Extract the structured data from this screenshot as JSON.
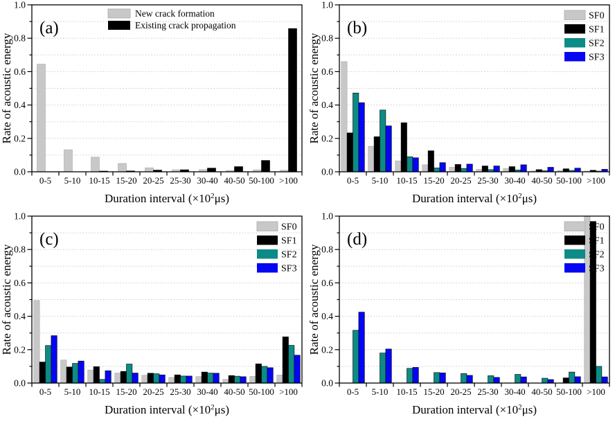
{
  "figure": {
    "description": "Four-panel grouped bar charts of acoustic energy rate versus AE event duration interval",
    "background": "#ffffff",
    "grid_color": "#c9c9c9",
    "axis_color": "#000000",
    "palette": {
      "gray": "#c8c8c8",
      "black": "#000000",
      "teal": "#0d8b86",
      "blue": "#0606f2"
    }
  },
  "chart_data": [
    {
      "type": "bar",
      "panel_label": "(a)",
      "xlabel": "Duration interval (×10²μs)",
      "ylabel": "Rate of acoustic energy",
      "ylim": [
        0,
        1.0
      ],
      "y_ticks": [
        "0.0",
        "0.2",
        "0.4",
        "0.6",
        "0.8",
        "1.0"
      ],
      "grid": "dotted horizontal every 0.1",
      "legend_position": "top-center",
      "categories": [
        "0-5",
        "5-10",
        "10-15",
        "15-20",
        "20-25",
        "25-30",
        "30-40",
        "40-50",
        "50-100",
        ">100"
      ],
      "series": [
        {
          "name": "New crack formation",
          "color": "#c8c8c8",
          "values": [
            0.645,
            0.132,
            0.088,
            0.05,
            0.024,
            0.012,
            0.013,
            0.008,
            0.012,
            0.009
          ]
        },
        {
          "name": "Existing crack propagation",
          "color": "#000000",
          "values": [
            0,
            0,
            0.003,
            0.005,
            0.01,
            0.012,
            0.022,
            0.031,
            0.068,
            0.858
          ]
        }
      ]
    },
    {
      "type": "bar",
      "panel_label": "(b)",
      "xlabel": "Duration interval (×10²μs)",
      "ylabel": "Rate of acoustic energy",
      "ylim": [
        0,
        1.0
      ],
      "y_ticks": [
        "0.0",
        "0.2",
        "0.4",
        "0.6",
        "0.8",
        "1.0"
      ],
      "grid": "dotted horizontal every 0.1",
      "legend_position": "top-right",
      "categories": [
        "0-5",
        "5-10",
        "10-15",
        "15-20",
        "20-25",
        "25-30",
        "30-40",
        "40-50",
        "50-100",
        ">100"
      ],
      "series": [
        {
          "name": "SF0",
          "color": "#c8c8c8",
          "values": [
            0.66,
            0.153,
            0.065,
            0.042,
            0.027,
            0.015,
            0.02,
            0.005,
            0.008,
            0.004
          ]
        },
        {
          "name": "SF1",
          "color": "#000000",
          "values": [
            0.233,
            0.21,
            0.294,
            0.126,
            0.044,
            0.035,
            0.031,
            0.013,
            0.018,
            0.009
          ]
        },
        {
          "name": "SF2",
          "color": "#0d8b86",
          "values": [
            0.472,
            0.37,
            0.09,
            0.023,
            0.02,
            0.013,
            0.011,
            0.006,
            0.008,
            0.004
          ]
        },
        {
          "name": "SF3",
          "color": "#0606f2",
          "values": [
            0.414,
            0.275,
            0.084,
            0.055,
            0.046,
            0.035,
            0.042,
            0.027,
            0.022,
            0.015
          ]
        }
      ]
    },
    {
      "type": "bar",
      "panel_label": "(c)",
      "xlabel": "Duration interval (×10²μs)",
      "ylabel": "Rate of acoustic energy",
      "ylim": [
        0,
        1.0
      ],
      "y_ticks": [
        "0.0",
        "0.2",
        "0.4",
        "0.6",
        "0.8",
        "1.0"
      ],
      "grid": "dotted horizontal every 0.1",
      "legend_position": "top-right",
      "categories": [
        "0-5",
        "5-10",
        "10-15",
        "15-20",
        "20-25",
        "25-30",
        "30-40",
        "40-50",
        "50-100",
        ">100"
      ],
      "series": [
        {
          "name": "SF0",
          "color": "#c8c8c8",
          "values": [
            0.495,
            0.138,
            0.078,
            0.06,
            0.047,
            0.034,
            0.039,
            0.022,
            0.04,
            0.048
          ]
        },
        {
          "name": "SF1",
          "color": "#000000",
          "values": [
            0.126,
            0.096,
            0.098,
            0.07,
            0.059,
            0.049,
            0.066,
            0.045,
            0.115,
            0.277
          ]
        },
        {
          "name": "SF2",
          "color": "#0d8b86",
          "values": [
            0.225,
            0.118,
            0.022,
            0.114,
            0.056,
            0.042,
            0.06,
            0.041,
            0.1,
            0.226
          ]
        },
        {
          "name": "SF3",
          "color": "#0606f2",
          "values": [
            0.284,
            0.132,
            0.074,
            0.06,
            0.049,
            0.042,
            0.059,
            0.038,
            0.092,
            0.167
          ]
        }
      ]
    },
    {
      "type": "bar",
      "panel_label": "(d)",
      "xlabel": "Duration interval (×10²μs)",
      "ylabel": "Rate of acoustic energy",
      "ylim": [
        0,
        1.0
      ],
      "y_ticks": [
        "0.0",
        "0.2",
        "0.4",
        "0.6",
        "0.8",
        "1.0"
      ],
      "grid": "dotted horizontal every 0.1",
      "legend_position": "top-right",
      "categories": [
        "0-5",
        "5-10",
        "10-15",
        "15-20",
        "20-25",
        "25-30",
        "30-40",
        "40-50",
        "50-100",
        ">100"
      ],
      "series": [
        {
          "name": "SF0",
          "color": "#c8c8c8",
          "values": [
            0,
            0,
            0,
            0,
            0,
            0,
            0,
            0,
            0,
            0.998
          ]
        },
        {
          "name": "SF1",
          "color": "#000000",
          "values": [
            0,
            0,
            0,
            0,
            0,
            0,
            0,
            0,
            0.031,
            0.968
          ]
        },
        {
          "name": "SF2",
          "color": "#0d8b86",
          "values": [
            0.316,
            0.18,
            0.088,
            0.063,
            0.057,
            0.044,
            0.052,
            0.029,
            0.066,
            0.1
          ]
        },
        {
          "name": "SF3",
          "color": "#0606f2",
          "values": [
            0.425,
            0.204,
            0.094,
            0.061,
            0.046,
            0.034,
            0.037,
            0.021,
            0.038,
            0.037
          ]
        }
      ]
    }
  ]
}
